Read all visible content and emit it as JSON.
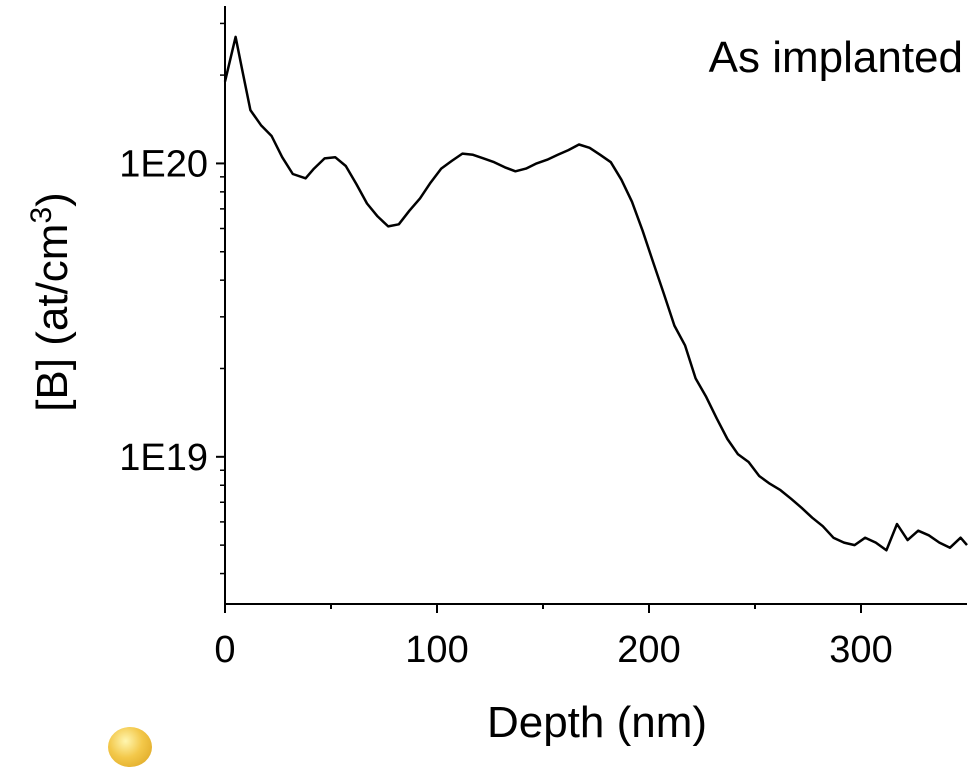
{
  "chart_data": {
    "type": "line",
    "title": "",
    "annotation": "As implanted",
    "xlabel": "Depth (nm)",
    "ylabel": "[B] (at/cm",
    "ylabel_superscript": "3",
    "ylabel_suffix": ")",
    "xlim": [
      0,
      350
    ],
    "ylim": [
      3.15e+18,
      3.44e+20
    ],
    "y_scale": "log",
    "x_ticks": [
      0,
      100,
      200,
      300
    ],
    "x_tick_labels": [
      "0",
      "100",
      "200",
      "300"
    ],
    "y_ticks": [
      1e+20,
      1e+19
    ],
    "y_tick_labels": [
      "1E20",
      "1E19"
    ],
    "grid": false,
    "legend": "none",
    "line_color": "#000000",
    "series": [
      {
        "x": [
          0,
          5,
          8,
          12,
          17,
          22,
          27,
          32,
          38,
          42,
          47,
          52,
          57,
          62,
          67,
          72,
          77,
          82,
          87,
          92,
          97,
          102,
          107,
          112,
          117,
          122,
          127,
          132,
          137,
          142,
          147,
          152,
          157,
          162,
          167,
          172,
          177,
          182,
          187,
          192,
          197,
          202,
          207,
          212,
          217,
          222,
          227,
          232,
          237,
          242,
          247,
          252,
          257,
          262,
          267,
          272,
          277,
          282,
          287,
          292,
          297,
          302,
          307,
          312,
          317,
          322,
          327,
          332,
          337,
          342,
          347,
          350
        ],
        "y": [
          1.9e+20,
          2.7e+20,
          2.1e+20,
          1.52e+20,
          1.35e+20,
          1.24e+20,
          1.05e+20,
          9.2e+19,
          8.9e+19,
          9.6e+19,
          1.04e+20,
          1.05e+20,
          9.8e+19,
          8.5e+19,
          7.3e+19,
          6.6e+19,
          6.1e+19,
          6.2e+19,
          6.9e+19,
          7.6e+19,
          8.6e+19,
          9.6e+19,
          1.02e+20,
          1.08e+20,
          1.07e+20,
          1.04e+20,
          1.01e+20,
          9.7e+19,
          9.4e+19,
          9.6e+19,
          1e+20,
          1.03e+20,
          1.07e+20,
          1.11e+20,
          1.16e+20,
          1.13e+20,
          1.07e+20,
          1.01e+20,
          8.8e+19,
          7.4e+19,
          5.9e+19,
          4.6e+19,
          3.6e+19,
          2.8e+19,
          2.4e+19,
          1.85e+19,
          1.6e+19,
          1.35e+19,
          1.15e+19,
          1.02e+19,
          9.6e+18,
          8.6e+18,
          8.1e+18,
          7.7e+18,
          7.2e+18,
          6.7e+18,
          6.2e+18,
          5.8e+18,
          5.3e+18,
          5.1e+18,
          5e+18,
          5.3e+18,
          5.1e+18,
          4.8e+18,
          5.9e+18,
          5.2e+18,
          5.6e+18,
          5.4e+18,
          5.1e+18,
          4.9e+18,
          5.3e+18,
          5e+18
        ]
      }
    ]
  }
}
